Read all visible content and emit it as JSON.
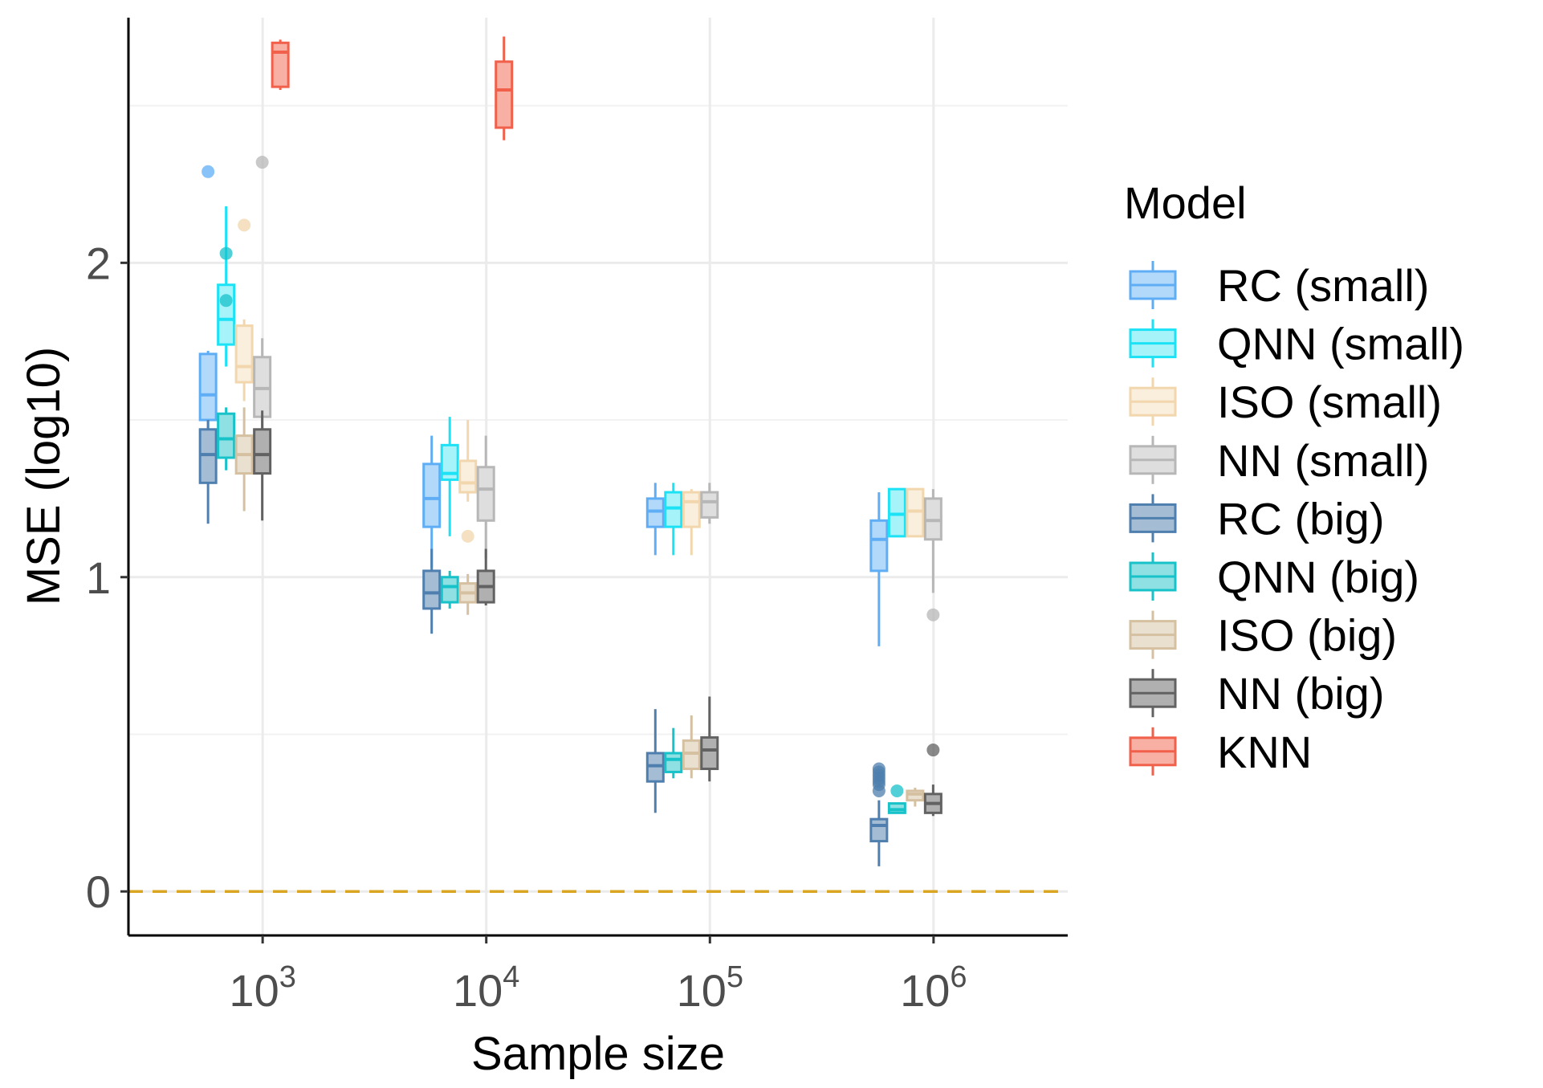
{
  "chart_data": {
    "type": "boxplot",
    "title": "",
    "xlabel": "Sample size",
    "ylabel": "MSE (log10)",
    "x_scale": "log10",
    "x_tick_values": [
      1000,
      10000,
      100000,
      1000000
    ],
    "x_tick_base": [
      "10",
      "10",
      "10",
      "10"
    ],
    "x_tick_exponents": [
      "3",
      "4",
      "5",
      "6"
    ],
    "ylim": [
      -0.14,
      2.78
    ],
    "y_ticks": [
      0,
      1,
      2
    ],
    "y_tick_labels": [
      "0",
      "1",
      "2"
    ],
    "x_range_log10": [
      2.4,
      6.6
    ],
    "reference_line": {
      "y": 0,
      "style": "dashed",
      "color": "#DAA520"
    },
    "legend": {
      "title": "Model",
      "position": "right"
    },
    "series": [
      {
        "name": "RC (small)",
        "line": "#5FAEF5",
        "fill": "#B3D9FA",
        "dodge": 0
      },
      {
        "name": "QNN (small)",
        "line": "#1CE2F5",
        "fill": "#A6F3FA",
        "dodge": 1
      },
      {
        "name": "ISO (small)",
        "line": "#F2D7AE",
        "fill": "#FAEEDC",
        "dodge": 2
      },
      {
        "name": "NN (small)",
        "line": "#B7B7B7",
        "fill": "#DEDEDE",
        "dodge": 3
      },
      {
        "name": "RC (big)",
        "line": "#4E7FAE",
        "fill": "#A4BDD5",
        "dodge": 0
      },
      {
        "name": "QNN (big)",
        "line": "#17C2C9",
        "fill": "#8EE0E3",
        "dodge": 1
      },
      {
        "name": "ISO (big)",
        "line": "#D5C1A1",
        "fill": "#EAE0D0",
        "dodge": 2
      },
      {
        "name": "NN (big)",
        "line": "#626262",
        "fill": "#B0B0B0",
        "dodge": 3
      },
      {
        "name": "KNN",
        "line": "#F0604A",
        "fill": "#F8B0A5",
        "dodge": 4
      }
    ],
    "boxes": [
      {
        "series": "RC (small)",
        "n": 1000,
        "min": 1.44,
        "q1": 1.5,
        "median": 1.58,
        "q3": 1.71,
        "max": 1.72,
        "outliers": [
          2.29
        ]
      },
      {
        "series": "QNN (small)",
        "n": 1000,
        "min": 1.67,
        "q1": 1.74,
        "median": 1.82,
        "q3": 1.93,
        "max": 2.18,
        "outliers": []
      },
      {
        "series": "ISO (small)",
        "n": 1000,
        "min": 1.56,
        "q1": 1.62,
        "median": 1.67,
        "q3": 1.8,
        "max": 1.82,
        "outliers": [
          2.12
        ]
      },
      {
        "series": "NN (small)",
        "n": 1000,
        "min": 1.43,
        "q1": 1.51,
        "median": 1.6,
        "q3": 1.7,
        "max": 1.76,
        "outliers": [
          2.32
        ]
      },
      {
        "series": "RC (big)",
        "n": 1000,
        "min": 1.17,
        "q1": 1.3,
        "median": 1.39,
        "q3": 1.47,
        "max": 1.5,
        "outliers": []
      },
      {
        "series": "QNN (big)",
        "n": 1000,
        "min": 1.34,
        "q1": 1.38,
        "median": 1.44,
        "q3": 1.52,
        "max": 1.54,
        "outliers": [
          2.03,
          1.88
        ]
      },
      {
        "series": "ISO (big)",
        "n": 1000,
        "min": 1.21,
        "q1": 1.33,
        "median": 1.39,
        "q3": 1.45,
        "max": 1.54,
        "outliers": []
      },
      {
        "series": "NN (big)",
        "n": 1000,
        "min": 1.18,
        "q1": 1.33,
        "median": 1.39,
        "q3": 1.47,
        "max": 1.53,
        "outliers": []
      },
      {
        "series": "KNN",
        "n": 1000,
        "min": 2.55,
        "q1": 2.56,
        "median": 2.67,
        "q3": 2.7,
        "max": 2.71,
        "outliers": []
      },
      {
        "series": "RC (small)",
        "n": 10000,
        "min": 1.03,
        "q1": 1.16,
        "median": 1.25,
        "q3": 1.36,
        "max": 1.45,
        "outliers": []
      },
      {
        "series": "QNN (small)",
        "n": 10000,
        "min": 1.13,
        "q1": 1.31,
        "median": 1.33,
        "q3": 1.42,
        "max": 1.51,
        "outliers": []
      },
      {
        "series": "ISO (small)",
        "n": 10000,
        "min": 1.24,
        "q1": 1.27,
        "median": 1.3,
        "q3": 1.37,
        "max": 1.5,
        "outliers": [
          1.13
        ]
      },
      {
        "series": "NN (small)",
        "n": 10000,
        "min": 1.06,
        "q1": 1.18,
        "median": 1.28,
        "q3": 1.35,
        "max": 1.45,
        "outliers": []
      },
      {
        "series": "RC (big)",
        "n": 10000,
        "min": 0.82,
        "q1": 0.9,
        "median": 0.95,
        "q3": 1.02,
        "max": 1.09,
        "outliers": []
      },
      {
        "series": "QNN (big)",
        "n": 10000,
        "min": 0.9,
        "q1": 0.92,
        "median": 0.97,
        "q3": 1.0,
        "max": 1.02,
        "outliers": []
      },
      {
        "series": "ISO (big)",
        "n": 10000,
        "min": 0.88,
        "q1": 0.92,
        "median": 0.95,
        "q3": 0.98,
        "max": 1.01,
        "outliers": []
      },
      {
        "series": "NN (big)",
        "n": 10000,
        "min": 0.91,
        "q1": 0.92,
        "median": 0.97,
        "q3": 1.02,
        "max": 1.09,
        "outliers": []
      },
      {
        "series": "KNN",
        "n": 10000,
        "min": 2.39,
        "q1": 2.43,
        "median": 2.55,
        "q3": 2.64,
        "max": 2.72,
        "outliers": []
      },
      {
        "series": "RC (small)",
        "n": 100000,
        "min": 1.07,
        "q1": 1.16,
        "median": 1.21,
        "q3": 1.25,
        "max": 1.3,
        "outliers": []
      },
      {
        "series": "QNN (small)",
        "n": 100000,
        "min": 1.07,
        "q1": 1.16,
        "median": 1.22,
        "q3": 1.27,
        "max": 1.3,
        "outliers": []
      },
      {
        "series": "ISO (small)",
        "n": 100000,
        "min": 1.07,
        "q1": 1.16,
        "median": 1.24,
        "q3": 1.27,
        "max": 1.28,
        "outliers": []
      },
      {
        "series": "NN (small)",
        "n": 100000,
        "min": 1.17,
        "q1": 1.19,
        "median": 1.24,
        "q3": 1.27,
        "max": 1.3,
        "outliers": []
      },
      {
        "series": "RC (big)",
        "n": 100000,
        "min": 0.25,
        "q1": 0.35,
        "median": 0.4,
        "q3": 0.44,
        "max": 0.58,
        "outliers": []
      },
      {
        "series": "QNN (big)",
        "n": 100000,
        "min": 0.36,
        "q1": 0.38,
        "median": 0.42,
        "q3": 0.44,
        "max": 0.52,
        "outliers": []
      },
      {
        "series": "ISO (big)",
        "n": 100000,
        "min": 0.36,
        "q1": 0.39,
        "median": 0.44,
        "q3": 0.48,
        "max": 0.56,
        "outliers": []
      },
      {
        "series": "NN (big)",
        "n": 100000,
        "min": 0.35,
        "q1": 0.39,
        "median": 0.45,
        "q3": 0.49,
        "max": 0.62,
        "outliers": []
      },
      {
        "series": "RC (small)",
        "n": 1000000,
        "min": 0.78,
        "q1": 1.02,
        "median": 1.12,
        "q3": 1.18,
        "max": 1.27,
        "outliers": []
      },
      {
        "series": "QNN (small)",
        "n": 1000000,
        "min": 1.13,
        "q1": 1.13,
        "median": 1.2,
        "q3": 1.28,
        "max": 1.28,
        "outliers": []
      },
      {
        "series": "ISO (small)",
        "n": 1000000,
        "min": 1.13,
        "q1": 1.13,
        "median": 1.21,
        "q3": 1.28,
        "max": 1.28,
        "outliers": []
      },
      {
        "series": "NN (small)",
        "n": 1000000,
        "min": 0.95,
        "q1": 1.12,
        "median": 1.18,
        "q3": 1.25,
        "max": 1.28,
        "outliers": [
          0.88
        ]
      },
      {
        "series": "RC (big)",
        "n": 1000000,
        "min": 0.08,
        "q1": 0.16,
        "median": 0.21,
        "q3": 0.23,
        "max": 0.29,
        "outliers": [
          0.32,
          0.34,
          0.35,
          0.36,
          0.37,
          0.38,
          0.39
        ]
      },
      {
        "series": "QNN (big)",
        "n": 1000000,
        "min": 0.25,
        "q1": 0.25,
        "median": 0.26,
        "q3": 0.28,
        "max": 0.28,
        "outliers": [
          0.32
        ]
      },
      {
        "series": "ISO (big)",
        "n": 1000000,
        "min": 0.27,
        "q1": 0.29,
        "median": 0.31,
        "q3": 0.32,
        "max": 0.33,
        "outliers": []
      },
      {
        "series": "NN (big)",
        "n": 1000000,
        "min": 0.24,
        "q1": 0.25,
        "median": 0.28,
        "q3": 0.31,
        "max": 0.34,
        "outliers": [
          0.45
        ]
      }
    ]
  }
}
